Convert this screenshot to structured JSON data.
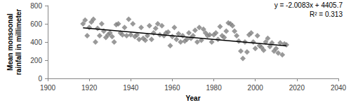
{
  "chart_data": {
    "type": "scatter",
    "x_label": "Year",
    "y_label": "Mean monsoonal rainfall in millimeter",
    "annotations": [
      "y = -2.0083x + 4405.7",
      "R² = 0.313"
    ],
    "xlim": [
      1900,
      2040
    ],
    "xticks": [
      1900,
      1920,
      1940,
      1960,
      1980,
      2000,
      2020,
      2040
    ],
    "ylim": [
      0,
      800
    ],
    "yticks": [
      0,
      200,
      400,
      600,
      800
    ],
    "grid": false,
    "series": [
      {
        "type": "scatter",
        "marker": "diamond",
        "color": "#808080",
        "x": [
          1917,
          1918,
          1919,
          1920,
          1921,
          1922,
          1923,
          1924,
          1925,
          1926,
          1927,
          1928,
          1929,
          1930,
          1931,
          1932,
          1933,
          1934,
          1935,
          1936,
          1937,
          1938,
          1939,
          1940,
          1941,
          1942,
          1943,
          1944,
          1945,
          1946,
          1947,
          1948,
          1949,
          1950,
          1951,
          1952,
          1953,
          1954,
          1955,
          1956,
          1957,
          1958,
          1959,
          1960,
          1961,
          1962,
          1963,
          1964,
          1965,
          1966,
          1967,
          1968,
          1969,
          1970,
          1971,
          1972,
          1973,
          1974,
          1975,
          1976,
          1977,
          1978,
          1979,
          1980,
          1981,
          1982,
          1983,
          1984,
          1985,
          1986,
          1987,
          1988,
          1989,
          1990,
          1991,
          1992,
          1993,
          1994,
          1995,
          1996,
          1997,
          1998,
          1999,
          2000,
          2001,
          2002,
          2003,
          2004,
          2005,
          2006,
          2007,
          2008,
          2009,
          2010,
          2011,
          2012,
          2013,
          2014,
          2015
        ],
        "values": [
          600,
          640,
          470,
          560,
          620,
          650,
          400,
          550,
          470,
          600,
          520,
          450,
          480,
          500,
          460,
          400,
          590,
          600,
          500,
          480,
          560,
          470,
          650,
          480,
          600,
          460,
          480,
          430,
          560,
          440,
          420,
          470,
          580,
          430,
          500,
          550,
          600,
          480,
          580,
          470,
          500,
          510,
          360,
          460,
          560,
          430,
          490,
          400,
          470,
          410,
          430,
          500,
          440,
          470,
          530,
          400,
          560,
          420,
          540,
          500,
          470,
          480,
          400,
          480,
          500,
          430,
          570,
          470,
          450,
          520,
          610,
          600,
          580,
          520,
          470,
          410,
          300,
          220,
          400,
          290,
          480,
          500,
          400,
          330,
          470,
          360,
          340,
          310,
          400,
          440,
          350,
          390,
          300,
          330,
          280,
          390,
          260,
          380,
          370
        ]
      },
      {
        "type": "line",
        "line_style": "solid",
        "color": "#000000",
        "x": [
          1917,
          2015
        ],
        "values": [
          556,
          359
        ]
      }
    ]
  }
}
